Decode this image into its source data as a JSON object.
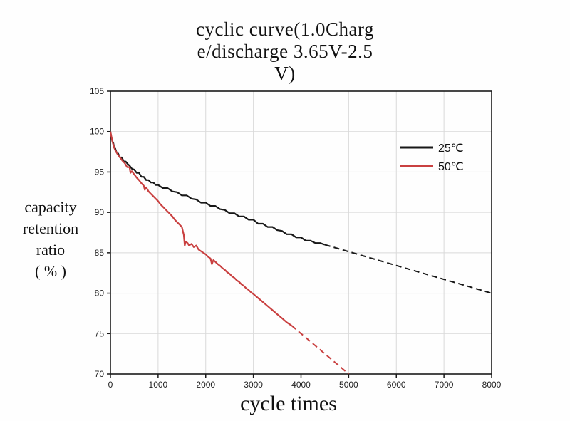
{
  "title": {
    "line1": "cyclic curve(1.0Charg",
    "line2": "e/discharge 3.65V-2.5",
    "line3": "V)"
  },
  "axis_labels": {
    "y_line1": "capacity",
    "y_line2": "retention",
    "y_line3": "ratio",
    "y_line4": "( % )",
    "x": "cycle times"
  },
  "chart_data": {
    "type": "line",
    "title": "cyclic curve(1.0Charge/discharge 3.65V-2.5V)",
    "xlabel": "cycle times",
    "ylabel": "capacity retention ratio ( % )",
    "xlim": [
      0,
      8000
    ],
    "ylim": [
      70,
      105
    ],
    "xticks": [
      0,
      1000,
      2000,
      3000,
      4000,
      5000,
      6000,
      7000,
      8000
    ],
    "yticks": [
      70,
      75,
      80,
      85,
      90,
      95,
      100,
      105
    ],
    "grid": true,
    "grid_color": "#d9d9d9",
    "axis_color": "#1a1a1a",
    "legend_position": "top-right",
    "series": [
      {
        "name": "25℃",
        "key": "25c",
        "color": "#181818",
        "solid": [
          [
            0,
            100
          ],
          [
            20,
            99.3
          ],
          [
            40,
            98.8
          ],
          [
            60,
            98.6
          ],
          [
            80,
            98.0
          ],
          [
            100,
            97.9
          ],
          [
            130,
            97.4
          ],
          [
            160,
            97.3
          ],
          [
            200,
            96.8
          ],
          [
            240,
            96.8
          ],
          [
            280,
            96.3
          ],
          [
            320,
            96.3
          ],
          [
            360,
            96.0
          ],
          [
            400,
            95.8
          ],
          [
            450,
            95.4
          ],
          [
            500,
            95.3
          ],
          [
            550,
            94.9
          ],
          [
            600,
            94.9
          ],
          [
            650,
            94.4
          ],
          [
            700,
            94.4
          ],
          [
            750,
            94.0
          ],
          [
            800,
            94.0
          ],
          [
            850,
            93.7
          ],
          [
            900,
            93.7
          ],
          [
            950,
            93.4
          ],
          [
            1000,
            93.4
          ],
          [
            1100,
            93.0
          ],
          [
            1200,
            93.0
          ],
          [
            1300,
            92.6
          ],
          [
            1400,
            92.5
          ],
          [
            1500,
            92.1
          ],
          [
            1600,
            92.1
          ],
          [
            1700,
            91.7
          ],
          [
            1800,
            91.6
          ],
          [
            1900,
            91.2
          ],
          [
            2000,
            91.2
          ],
          [
            2100,
            90.8
          ],
          [
            2200,
            90.8
          ],
          [
            2300,
            90.4
          ],
          [
            2400,
            90.3
          ],
          [
            2500,
            89.9
          ],
          [
            2600,
            89.9
          ],
          [
            2700,
            89.5
          ],
          [
            2800,
            89.5
          ],
          [
            2900,
            89.1
          ],
          [
            3000,
            89.1
          ],
          [
            3100,
            88.6
          ],
          [
            3200,
            88.6
          ],
          [
            3300,
            88.2
          ],
          [
            3400,
            88.2
          ],
          [
            3500,
            87.8
          ],
          [
            3600,
            87.7
          ],
          [
            3700,
            87.3
          ],
          [
            3800,
            87.3
          ],
          [
            3900,
            86.9
          ],
          [
            4000,
            86.9
          ],
          [
            4100,
            86.5
          ],
          [
            4200,
            86.5
          ],
          [
            4300,
            86.2
          ],
          [
            4400,
            86.2
          ],
          [
            4500,
            86.0
          ]
        ],
        "dashed": [
          [
            4500,
            86.0
          ],
          [
            8000,
            80.0
          ]
        ]
      },
      {
        "name": "50℃",
        "key": "50c",
        "color": "#c94040",
        "solid": [
          [
            0,
            100
          ],
          [
            20,
            99.4
          ],
          [
            40,
            98.8
          ],
          [
            60,
            98.4
          ],
          [
            80,
            98.0
          ],
          [
            100,
            97.7
          ],
          [
            150,
            97.2
          ],
          [
            200,
            96.8
          ],
          [
            250,
            96.4
          ],
          [
            300,
            96.1
          ],
          [
            350,
            95.6
          ],
          [
            400,
            95.6
          ],
          [
            420,
            94.9
          ],
          [
            450,
            95.1
          ],
          [
            500,
            94.7
          ],
          [
            550,
            94.3
          ],
          [
            600,
            94.0
          ],
          [
            650,
            93.6
          ],
          [
            700,
            93.3
          ],
          [
            720,
            92.8
          ],
          [
            750,
            93.1
          ],
          [
            800,
            92.6
          ],
          [
            850,
            92.3
          ],
          [
            900,
            92.0
          ],
          [
            950,
            91.7
          ],
          [
            1000,
            91.4
          ],
          [
            1050,
            91.0
          ],
          [
            1100,
            90.7
          ],
          [
            1150,
            90.4
          ],
          [
            1200,
            90.1
          ],
          [
            1250,
            89.8
          ],
          [
            1300,
            89.5
          ],
          [
            1350,
            89.1
          ],
          [
            1400,
            88.8
          ],
          [
            1450,
            88.5
          ],
          [
            1500,
            88.2
          ],
          [
            1540,
            87.2
          ],
          [
            1560,
            85.9
          ],
          [
            1580,
            86.4
          ],
          [
            1620,
            86.2
          ],
          [
            1650,
            85.9
          ],
          [
            1700,
            86.1
          ],
          [
            1750,
            85.7
          ],
          [
            1800,
            85.9
          ],
          [
            1850,
            85.4
          ],
          [
            1900,
            85.2
          ],
          [
            1950,
            85.0
          ],
          [
            2000,
            84.8
          ],
          [
            2050,
            84.5
          ],
          [
            2100,
            84.3
          ],
          [
            2130,
            83.6
          ],
          [
            2160,
            84.1
          ],
          [
            2200,
            83.9
          ],
          [
            2250,
            83.6
          ],
          [
            2300,
            83.4
          ],
          [
            2350,
            83.1
          ],
          [
            2400,
            82.9
          ],
          [
            2450,
            82.6
          ],
          [
            2500,
            82.4
          ],
          [
            2550,
            82.1
          ],
          [
            2600,
            81.9
          ],
          [
            2650,
            81.6
          ],
          [
            2700,
            81.4
          ],
          [
            2750,
            81.1
          ],
          [
            2800,
            80.9
          ],
          [
            2850,
            80.6
          ],
          [
            2900,
            80.4
          ],
          [
            2950,
            80.1
          ],
          [
            3000,
            79.9
          ],
          [
            3100,
            79.4
          ],
          [
            3200,
            78.9
          ],
          [
            3300,
            78.4
          ],
          [
            3400,
            77.9
          ],
          [
            3500,
            77.4
          ],
          [
            3600,
            76.9
          ],
          [
            3700,
            76.4
          ],
          [
            3800,
            76.0
          ]
        ],
        "dashed": [
          [
            3800,
            76.0
          ],
          [
            5000,
            70.0
          ]
        ]
      }
    ]
  }
}
